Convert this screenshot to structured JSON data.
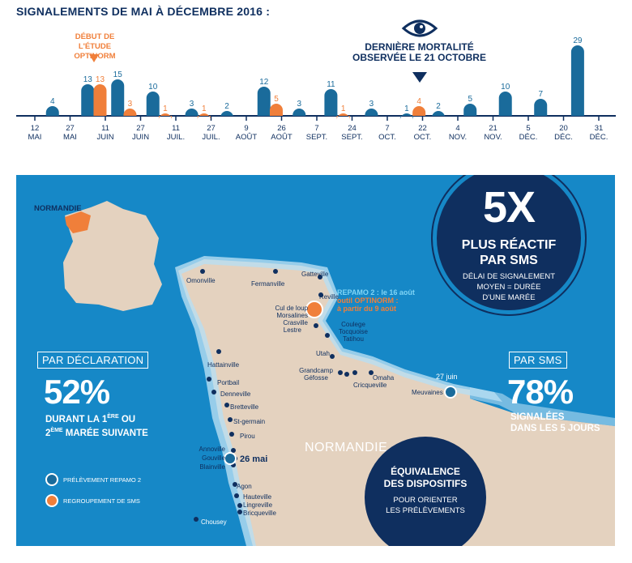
{
  "timeline": {
    "title": "SIGNALEMENTS DE MAI À DÉCEMBRE 2016 :",
    "ticks": [
      {
        "d": "12",
        "m": "MAI"
      },
      {
        "d": "27",
        "m": "MAI"
      },
      {
        "d": "11",
        "m": "JUIN"
      },
      {
        "d": "27",
        "m": "JUIN"
      },
      {
        "d": "11",
        "m": "JUIL."
      },
      {
        "d": "27",
        "m": "JUIL."
      },
      {
        "d": "9",
        "m": "AOÛT"
      },
      {
        "d": "26",
        "m": "AOÛT"
      },
      {
        "d": "7",
        "m": "SEPT."
      },
      {
        "d": "24",
        "m": "SEPT."
      },
      {
        "d": "7",
        "m": "OCT."
      },
      {
        "d": "22",
        "m": "OCT."
      },
      {
        "d": "4",
        "m": "NOV."
      },
      {
        "d": "21",
        "m": "NOV."
      },
      {
        "d": "5",
        "m": "DÉC."
      },
      {
        "d": "20",
        "m": "DÉC."
      },
      {
        "d": "31",
        "m": "DÉC."
      }
    ],
    "bars": [
      {
        "pos": 0.5,
        "value": 4,
        "series": "repamo"
      },
      {
        "pos": 1.5,
        "value": 13,
        "series": "repamo"
      },
      {
        "pos": 1.85,
        "value": 13,
        "series": "optinorm"
      },
      {
        "pos": 2.35,
        "value": 15,
        "series": "repamo"
      },
      {
        "pos": 2.7,
        "value": 3,
        "series": "optinorm"
      },
      {
        "pos": 3.35,
        "value": 10,
        "series": "repamo"
      },
      {
        "pos": 3.7,
        "value": 1,
        "series": "optinorm"
      },
      {
        "pos": 4.45,
        "value": 3,
        "series": "repamo"
      },
      {
        "pos": 4.8,
        "value": 1,
        "series": "optinorm"
      },
      {
        "pos": 5.45,
        "value": 2,
        "series": "repamo"
      },
      {
        "pos": 6.5,
        "value": 12,
        "series": "repamo"
      },
      {
        "pos": 6.85,
        "value": 5,
        "series": "optinorm"
      },
      {
        "pos": 7.5,
        "value": 3,
        "series": "repamo"
      },
      {
        "pos": 8.4,
        "value": 11,
        "series": "repamo"
      },
      {
        "pos": 8.75,
        "value": 1,
        "series": "optinorm"
      },
      {
        "pos": 9.55,
        "value": 3,
        "series": "repamo"
      },
      {
        "pos": 10.55,
        "value": 1,
        "series": "repamo"
      },
      {
        "pos": 10.9,
        "value": 4,
        "series": "optinorm"
      },
      {
        "pos": 11.45,
        "value": 2,
        "series": "repamo"
      },
      {
        "pos": 12.35,
        "value": 5,
        "series": "repamo"
      },
      {
        "pos": 13.35,
        "value": 10,
        "series": "repamo"
      },
      {
        "pos": 14.35,
        "value": 7,
        "series": "repamo"
      },
      {
        "pos": 15.4,
        "value": 29,
        "series": "repamo"
      }
    ],
    "callout_start": "DÉBUT DE L'ÉTUDE OPTINORM",
    "callout_mortality": "DERNIÈRE MORTALITÉ OBSERVÉE LE 21 OCTOBRE",
    "colors": {
      "repamo": "#1a6b9b",
      "optinorm": "#f07f3a",
      "navy": "#0f2f5f"
    }
  },
  "map": {
    "inset_label": "NORMANDIE",
    "region_label": "NORMANDIE",
    "towns": {
      "omonville": "Omonville",
      "fermanville": "Fermanville",
      "gatteville": "Gatteville",
      "reville": "Reville",
      "culdeloup": "Cul de loup",
      "morsalines": "Morsalines",
      "crasville": "Crasville",
      "lestre": "Lestre",
      "coulege": "Coulege",
      "tocquoise": "Tocquoise",
      "tatihou": "Tatihou",
      "utah": "Utah",
      "grandcamp": "Grandcamp",
      "gefosse": "Géfosse",
      "omaha": "Omaha",
      "cricqueville": "Cricqueville",
      "meuvaines": "Meuvaines",
      "hattainville": "Hattainville",
      "portbail": "Portbail",
      "denneville": "Denneville",
      "bretteville": "Bretteville",
      "stgermain": "St-germain",
      "pirou": "Pirou",
      "annoville": "Annoville",
      "gouville": "Gouville",
      "blainville": "Blainville",
      "agon": "Agon",
      "hauteville": "Hauteville",
      "lingreville": "Lingreville",
      "bricqueville": "Bricqueville",
      "chousey": "Chousey"
    },
    "repamo_line": "REPAMO 2 : le 16 août",
    "optinorm_line1": "outil OPTINORM :",
    "optinorm_line2": "à partir du 9 août",
    "date_27juin": "27 juin",
    "date_26mai": "26 mai"
  },
  "declaration": {
    "tag": "PAR DÉCLARATION",
    "percent": "52%",
    "line1_pre": "DURANT LA 1",
    "line1_sup": "ÈRE",
    "line1_post": " OU",
    "line2_pre": "2",
    "line2_sup": "ÈME",
    "line2_post": " MARÉE SUIVANTE"
  },
  "sms": {
    "tag": "PAR SMS",
    "percent": "78%",
    "line1": "SIGNALÉES",
    "line2": "DANS LES 5 JOURS"
  },
  "big_circle": {
    "value": "5X",
    "line1": "PLUS RÉACTIF",
    "line2": "PAR SMS",
    "sub1": "DÉLAI DE SIGNALEMENT",
    "sub2": "MOYEN = DURÉE",
    "sub3": "D'UNE MARÉE"
  },
  "small_circle": {
    "line1": "ÉQUIVALENCE",
    "line2": "DES DISPOSITIFS",
    "sub1": "POUR ORIENTER",
    "sub2": "LES PRÉLÈVEMENTS"
  },
  "legend": {
    "repamo": "PRÉLÈVEMENT REPAMO 2",
    "sms": "REGROUPEMENT DE SMS"
  }
}
